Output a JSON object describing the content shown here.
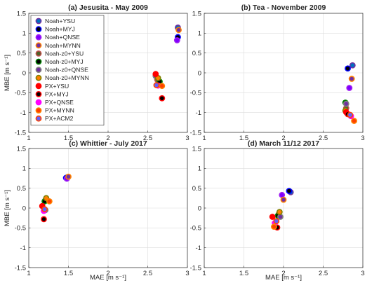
{
  "legend": {
    "entries": [
      {
        "label": "Noah+YSU",
        "edge": "#7030a0",
        "fill": "#0070c0"
      },
      {
        "label": "Noah+MYJ",
        "edge": "#0000ff",
        "fill": "#000000"
      },
      {
        "label": "Noah+QNSE",
        "edge": "#a020f0",
        "fill": "#7f00ff"
      },
      {
        "label": "Noah+MYNN",
        "edge": "#ff8000",
        "fill": "#7030a0"
      },
      {
        "label": "Noah-z0+YSU",
        "edge": "#c0504d",
        "fill": "#4f6228"
      },
      {
        "label": "Noah-z0+MYJ",
        "edge": "#008000",
        "fill": "#000000"
      },
      {
        "label": "Noah-z0+QNSE",
        "edge": "#808080",
        "fill": "#7030a0"
      },
      {
        "label": "Noah-z0+MYNN",
        "edge": "#808000",
        "fill": "#ff8000"
      },
      {
        "label": "PX+YSU",
        "edge": "#ff0000",
        "fill": "#ff0000"
      },
      {
        "label": "PX+MYJ",
        "edge": "#ff0000",
        "fill": "#000000"
      },
      {
        "label": "PX+QNSE",
        "edge": "#ff00ff",
        "fill": "#ff00ff"
      },
      {
        "label": "PX+MYNN",
        "edge": "#ff8000",
        "fill": "#ff4000"
      },
      {
        "label": "PX+ACM2",
        "edge": "#ff4500",
        "fill": "#6060ff"
      }
    ]
  },
  "chart_data": [
    {
      "type": "scatter",
      "title": "(a) Jesusita - May 2009",
      "xlabel": "",
      "ylabel": "MBE [m s⁻¹]",
      "xlim": [
        1,
        3
      ],
      "ylim": [
        -1.5,
        1.5
      ],
      "xticks": [
        "1",
        "1.5",
        "2",
        "2.5",
        "3"
      ],
      "yticks": [
        "-1.5",
        "-1",
        "-0.5",
        "0",
        "0.5",
        "1",
        "1.5"
      ],
      "grid": true,
      "legend_position": "top-left",
      "series": [
        {
          "name": "Noah+YSU",
          "x": [
            2.88
          ],
          "y": [
            1.14
          ]
        },
        {
          "name": "Noah+MYJ",
          "x": [
            2.88
          ],
          "y": [
            0.9
          ]
        },
        {
          "name": "Noah+QNSE",
          "x": [
            2.87
          ],
          "y": [
            0.82
          ]
        },
        {
          "name": "Noah+MYNN",
          "x": [
            2.89
          ],
          "y": [
            1.08
          ]
        },
        {
          "name": "Noah-z0+YSU",
          "x": [
            2.62
          ],
          "y": [
            -0.17
          ]
        },
        {
          "name": "Noah-z0+MYJ",
          "x": [
            2.65
          ],
          "y": [
            -0.22
          ]
        },
        {
          "name": "Noah-z0+QNSE",
          "x": [
            2.6
          ],
          "y": [
            -0.08
          ]
        },
        {
          "name": "Noah-z0+MYNN",
          "x": [
            2.63
          ],
          "y": [
            -0.13
          ]
        },
        {
          "name": "PX+YSU",
          "x": [
            2.6
          ],
          "y": [
            -0.03
          ]
        },
        {
          "name": "PX+MYJ",
          "x": [
            2.68
          ],
          "y": [
            -0.64
          ]
        },
        {
          "name": "PX+QNSE",
          "x": [
            2.63
          ],
          "y": [
            -0.32
          ]
        },
        {
          "name": "PX+MYNN",
          "x": [
            2.68
          ],
          "y": [
            -0.33
          ]
        },
        {
          "name": "PX+ACM2",
          "x": [
            2.61
          ],
          "y": [
            -0.31
          ]
        }
      ]
    },
    {
      "type": "scatter",
      "title": "(b) Tea - November 2009",
      "xlabel": "",
      "ylabel": "",
      "xlim": [
        1,
        3
      ],
      "ylim": [
        -1.5,
        1.5
      ],
      "xticks": [
        "1",
        "1.5",
        "2",
        "2.5",
        "3"
      ],
      "yticks": [
        "-1.5",
        "-1",
        "-0.5",
        "0",
        "0.5",
        "1",
        "1.5"
      ],
      "grid": true,
      "series": [
        {
          "name": "Noah+YSU",
          "x": [
            2.87
          ],
          "y": [
            0.19
          ]
        },
        {
          "name": "Noah+MYJ",
          "x": [
            2.81
          ],
          "y": [
            0.11
          ]
        },
        {
          "name": "Noah+QNSE",
          "x": [
            2.83
          ],
          "y": [
            -0.38
          ]
        },
        {
          "name": "Noah+MYNN",
          "x": [
            2.86
          ],
          "y": [
            -0.15
          ]
        },
        {
          "name": "Noah-z0+YSU",
          "x": [
            2.79
          ],
          "y": [
            -0.89
          ]
        },
        {
          "name": "Noah-z0+MYJ",
          "x": [
            2.78
          ],
          "y": [
            -0.75
          ]
        },
        {
          "name": "Noah-z0+QNSE",
          "x": [
            2.79
          ],
          "y": [
            -0.78
          ]
        },
        {
          "name": "Noah-z0+MYNN",
          "x": [
            2.78
          ],
          "y": [
            -0.95
          ]
        },
        {
          "name": "PX+YSU",
          "x": [
            2.79
          ],
          "y": [
            -0.99
          ]
        },
        {
          "name": "PX+MYJ",
          "x": [
            2.81
          ],
          "y": [
            -1.04
          ]
        },
        {
          "name": "PX+QNSE",
          "x": [
            2.85
          ],
          "y": [
            -1.09
          ]
        },
        {
          "name": "PX+MYNN",
          "x": [
            2.89
          ],
          "y": [
            -1.21
          ]
        },
        {
          "name": "PX+ACM2",
          "x": [
            2.84
          ],
          "y": [
            -1.06
          ]
        }
      ]
    },
    {
      "type": "scatter",
      "title": "(c) Whittier - July 2017",
      "xlabel": "MAE [m s⁻¹]",
      "ylabel": "MBE [m s⁻¹]",
      "xlim": [
        1,
        3
      ],
      "ylim": [
        -1.5,
        1.5
      ],
      "xticks": [
        "1",
        "1.5",
        "2",
        "2.5",
        "3"
      ],
      "yticks": [
        "-1.5",
        "-1",
        "-0.5",
        "0",
        "0.5",
        "1",
        "1.5"
      ],
      "grid": true,
      "series": [
        {
          "name": "Noah+YSU",
          "x": [
            1.49
          ],
          "y": [
            0.78
          ]
        },
        {
          "name": "Noah+MYJ",
          "x": [
            1.47
          ],
          "y": [
            0.76
          ]
        },
        {
          "name": "Noah+QNSE",
          "x": [
            1.48
          ],
          "y": [
            0.74
          ]
        },
        {
          "name": "Noah+MYNN",
          "x": [
            1.5
          ],
          "y": [
            0.79
          ]
        },
        {
          "name": "Noah-z0+YSU",
          "x": [
            1.21
          ],
          "y": [
            0.2
          ]
        },
        {
          "name": "Noah-z0+MYJ",
          "x": [
            1.2
          ],
          "y": [
            0.17
          ]
        },
        {
          "name": "Noah-z0+QNSE",
          "x": [
            1.21
          ],
          "y": [
            -0.05
          ]
        },
        {
          "name": "Noah-z0+MYNN",
          "x": [
            1.22
          ],
          "y": [
            0.25
          ]
        },
        {
          "name": "PX+YSU",
          "x": [
            1.17
          ],
          "y": [
            0.05
          ]
        },
        {
          "name": "PX+MYJ",
          "x": [
            1.19
          ],
          "y": [
            -0.28
          ]
        },
        {
          "name": "PX+QNSE",
          "x": [
            1.19
          ],
          "y": [
            -0.07
          ]
        },
        {
          "name": "PX+MYNN",
          "x": [
            1.26
          ],
          "y": [
            0.17
          ]
        },
        {
          "name": "PX+ACM2",
          "x": [
            1.2
          ],
          "y": [
            -0.03
          ]
        }
      ]
    },
    {
      "type": "scatter",
      "title": "(d) March 11/12 2017",
      "xlabel": "MAE [m s⁻¹]",
      "ylabel": "",
      "xlim": [
        1,
        3
      ],
      "ylim": [
        -1.5,
        1.5
      ],
      "xticks": [
        "1",
        "1.5",
        "2",
        "2.5",
        "3"
      ],
      "yticks": [
        "-1.5",
        "-1",
        "-0.5",
        "0",
        "0.5",
        "1",
        "1.5"
      ],
      "grid": true,
      "series": [
        {
          "name": "Noah+YSU",
          "x": [
            2.09
          ],
          "y": [
            0.4
          ]
        },
        {
          "name": "Noah+MYJ",
          "x": [
            2.07
          ],
          "y": [
            0.43
          ]
        },
        {
          "name": "Noah+QNSE",
          "x": [
            1.98
          ],
          "y": [
            0.33
          ]
        },
        {
          "name": "Noah+MYNN",
          "x": [
            2.0
          ],
          "y": [
            0.21
          ]
        },
        {
          "name": "Noah-z0+YSU",
          "x": [
            1.94
          ],
          "y": [
            -0.15
          ]
        },
        {
          "name": "Noah-z0+MYJ",
          "x": [
            1.93
          ],
          "y": [
            -0.19
          ]
        },
        {
          "name": "Noah-z0+QNSE",
          "x": [
            1.96
          ],
          "y": [
            -0.22
          ]
        },
        {
          "name": "Noah-z0+MYNN",
          "x": [
            1.95
          ],
          "y": [
            -0.1
          ]
        },
        {
          "name": "PX+YSU",
          "x": [
            1.86
          ],
          "y": [
            -0.22
          ]
        },
        {
          "name": "PX+MYJ",
          "x": [
            1.92
          ],
          "y": [
            -0.49
          ]
        },
        {
          "name": "PX+QNSE",
          "x": [
            1.89
          ],
          "y": [
            -0.38
          ]
        },
        {
          "name": "PX+MYNN",
          "x": [
            1.88
          ],
          "y": [
            -0.47
          ]
        },
        {
          "name": "PX+ACM2",
          "x": [
            1.91
          ],
          "y": [
            -0.33
          ]
        }
      ]
    }
  ]
}
